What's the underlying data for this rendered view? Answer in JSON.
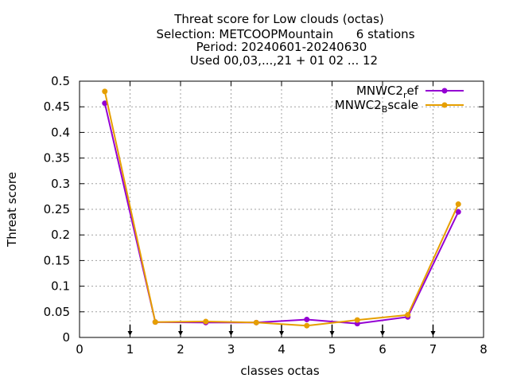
{
  "chart_data": {
    "type": "line",
    "title_lines": [
      "Threat score  for Low clouds (octas)",
      "Selection: METCOOPMountain      6 stations",
      "Period: 20240601-20240630",
      "Used 00,03,...,21 + 01 02 ... 12"
    ],
    "xlabel": "classes octas",
    "ylabel": "Threat score",
    "xlim": [
      0,
      8
    ],
    "ylim": [
      0,
      0.5
    ],
    "xticks": [
      "0",
      "1",
      "2",
      "3",
      "4",
      "5",
      "6",
      "7",
      "8"
    ],
    "yticks": [
      "0",
      "0.05",
      "0.1",
      "0.15",
      "0.2",
      "0.25",
      "0.3",
      "0.35",
      "0.4",
      "0.45",
      "0.5"
    ],
    "grid": true,
    "legend_position": "top-right",
    "class_markers_x": [
      1,
      2,
      3,
      4,
      5,
      6,
      7
    ],
    "x": [
      0.5,
      1.5,
      2.5,
      3.5,
      4.5,
      5.5,
      6.5,
      7.5
    ],
    "series": [
      {
        "name": "MNWC2_ref",
        "legend_main": "MNWC2",
        "legend_sub": "r",
        "legend_rest": "ef",
        "color": "#9400d3",
        "values": [
          0.457,
          0.03,
          0.029,
          0.029,
          0.035,
          0.027,
          0.04,
          0.245
        ]
      },
      {
        "name": "MNWC2_Bscale",
        "legend_main": "MNWC2",
        "legend_sub": "B",
        "legend_rest": "scale",
        "color": "#e69f00",
        "values": [
          0.48,
          0.03,
          0.031,
          0.029,
          0.023,
          0.034,
          0.044,
          0.26
        ]
      }
    ]
  }
}
